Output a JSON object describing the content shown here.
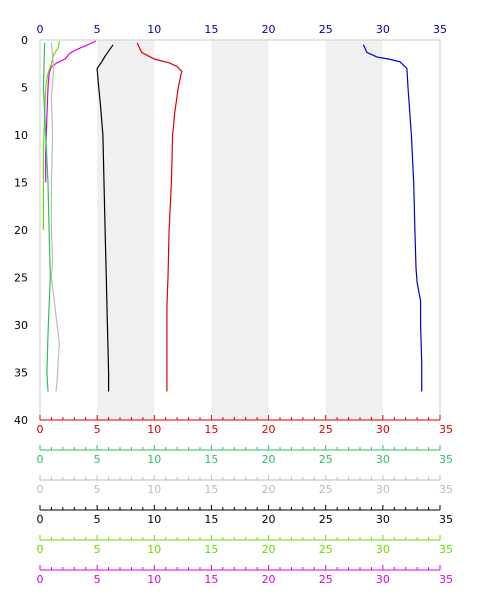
{
  "chart_data": {
    "type": "line",
    "orientation": "depth-profile",
    "x_range": [
      0,
      35
    ],
    "y_range": [
      0,
      40
    ],
    "y_inverted": true,
    "grid": false,
    "shaded_bands": [
      [
        5,
        10
      ],
      [
        15,
        20
      ],
      [
        25,
        30
      ]
    ],
    "top_axis": {
      "color": "#0000aa",
      "ticks": [
        "0",
        "5",
        "10",
        "15",
        "20",
        "25",
        "30",
        "35"
      ]
    },
    "left_axis": {
      "color": "#000000",
      "ticks": [
        "0",
        "5",
        "10",
        "15",
        "20",
        "25",
        "30",
        "35",
        "40"
      ]
    },
    "bottom_axes": [
      {
        "color": "#dd0000",
        "ticks": [
          "0",
          "5",
          "10",
          "15",
          "20",
          "25",
          "30",
          "35"
        ]
      },
      {
        "color": "#33bb66",
        "ticks": [
          "0",
          "5",
          "10",
          "15",
          "20",
          "25",
          "30",
          "35"
        ]
      },
      {
        "color": "#bbbbbb",
        "ticks": [
          "0",
          "5",
          "10",
          "15",
          "20",
          "25",
          "30",
          "35"
        ]
      },
      {
        "color": "#000000",
        "ticks": [
          "0",
          "5",
          "10",
          "15",
          "20",
          "25",
          "30",
          "35"
        ]
      },
      {
        "color": "#66dd00",
        "ticks": [
          "0",
          "5",
          "10",
          "15",
          "20",
          "25",
          "30",
          "35"
        ]
      },
      {
        "color": "#dd00dd",
        "ticks": [
          "0",
          "5",
          "10",
          "15",
          "20",
          "25",
          "30",
          "35"
        ]
      }
    ],
    "series": [
      {
        "color": "#0000cc",
        "points": [
          [
            28.3,
            0.5
          ],
          [
            28.6,
            1.3
          ],
          [
            29.5,
            1.8
          ],
          [
            30.5,
            2.0
          ],
          [
            31.5,
            2.3
          ],
          [
            32.1,
            3.0
          ],
          [
            32.2,
            5.0
          ],
          [
            32.5,
            10
          ],
          [
            32.7,
            15
          ],
          [
            32.8,
            20
          ],
          [
            32.9,
            24
          ],
          [
            33.0,
            25.5
          ],
          [
            33.3,
            27.5
          ],
          [
            33.3,
            30
          ],
          [
            33.4,
            34
          ],
          [
            33.4,
            37
          ]
        ]
      },
      {
        "color": "#dd0000",
        "points": [
          [
            8.5,
            0.3
          ],
          [
            8.9,
            1.3
          ],
          [
            10.0,
            2.0
          ],
          [
            11.3,
            2.4
          ],
          [
            12.0,
            2.8
          ],
          [
            12.4,
            3.3
          ],
          [
            12.1,
            5.0
          ],
          [
            11.8,
            7.5
          ],
          [
            11.6,
            10
          ],
          [
            11.5,
            15
          ],
          [
            11.3,
            20
          ],
          [
            11.2,
            25
          ],
          [
            11.1,
            28
          ],
          [
            11.1,
            32
          ],
          [
            11.1,
            37
          ]
        ]
      },
      {
        "color": "#000000",
        "points": [
          [
            6.4,
            0.5
          ],
          [
            5.8,
            1.5
          ],
          [
            5.4,
            2.3
          ],
          [
            5.0,
            3.0
          ],
          [
            5.1,
            4.5
          ],
          [
            5.3,
            7.0
          ],
          [
            5.5,
            10
          ],
          [
            5.6,
            15
          ],
          [
            5.7,
            20
          ],
          [
            5.8,
            25
          ],
          [
            5.9,
            30
          ],
          [
            6.0,
            35
          ],
          [
            6.0,
            37
          ]
        ]
      },
      {
        "color": "#dd00dd",
        "points": [
          [
            4.9,
            0.1
          ],
          [
            4.0,
            0.6
          ],
          [
            3.2,
            1.0
          ],
          [
            2.6,
            1.4
          ],
          [
            2.2,
            2.0
          ],
          [
            1.5,
            2.4
          ],
          [
            1.0,
            2.8
          ],
          [
            0.8,
            3.5
          ],
          [
            0.7,
            5.0
          ],
          [
            0.6,
            8.0
          ],
          [
            0.5,
            12
          ],
          [
            0.5,
            15
          ]
        ]
      },
      {
        "color": "#66dd00",
        "points": [
          [
            1.7,
            0.1
          ],
          [
            1.6,
            0.8
          ],
          [
            1.2,
            1.5
          ],
          [
            1.0,
            2.5
          ],
          [
            0.7,
            3.5
          ],
          [
            0.5,
            5.0
          ],
          [
            0.4,
            8.0
          ],
          [
            0.3,
            12
          ],
          [
            0.3,
            16
          ],
          [
            0.3,
            20
          ]
        ]
      },
      {
        "color": "#33bb66",
        "points": [
          [
            0.4,
            0.3
          ],
          [
            0.3,
            5.0
          ],
          [
            0.5,
            10
          ],
          [
            0.7,
            15
          ],
          [
            0.8,
            20
          ],
          [
            0.9,
            25
          ],
          [
            0.8,
            28
          ],
          [
            0.7,
            31
          ],
          [
            0.6,
            35
          ],
          [
            0.7,
            37
          ]
        ]
      },
      {
        "color": "#bbbbbb",
        "points": [
          [
            1.0,
            0.3
          ],
          [
            1.2,
            3.0
          ],
          [
            1.0,
            6.0
          ],
          [
            1.1,
            10
          ],
          [
            1.0,
            15
          ],
          [
            1.0,
            20
          ],
          [
            1.1,
            23
          ],
          [
            1.0,
            25
          ],
          [
            1.2,
            27
          ],
          [
            1.5,
            30
          ],
          [
            1.7,
            32
          ],
          [
            1.6,
            33.5
          ],
          [
            1.5,
            36
          ],
          [
            1.4,
            37
          ]
        ]
      }
    ]
  }
}
